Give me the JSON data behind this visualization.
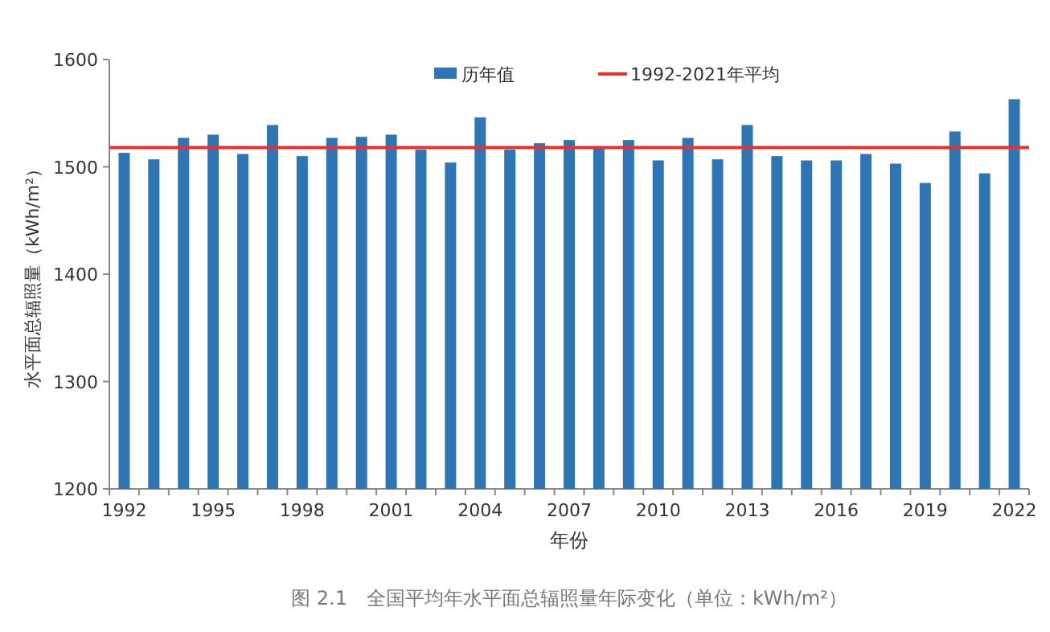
{
  "chart_data": {
    "type": "bar",
    "categories": [
      "1992",
      null,
      null,
      "1995",
      null,
      null,
      "1998",
      null,
      null,
      "2001",
      null,
      null,
      "2004",
      null,
      null,
      "2007",
      null,
      null,
      "2010",
      null,
      null,
      "2013",
      null,
      null,
      "2016",
      null,
      null,
      "2019",
      null,
      null,
      "2022"
    ],
    "series": [
      {
        "name": "历年值",
        "color": "#2e75b6",
        "values": [
          1513,
          1507,
          1527,
          1530,
          1512,
          1539,
          1510,
          1527,
          1528,
          1530,
          1516,
          1504,
          1546,
          1516,
          1522,
          1525,
          1518,
          1525,
          1506,
          1527,
          1507,
          1539,
          1510,
          1506,
          1506,
          1512,
          1503,
          1485,
          1533,
          1494,
          1563
        ]
      }
    ],
    "ylim": [
      1200,
      1600
    ],
    "yticks": [
      1200,
      1300,
      1400,
      1500,
      1600
    ],
    "xlabel": "年份",
    "ylabel": "水平面总辐照量（kWh/m²）",
    "ref_lines": [
      {
        "axis": "y",
        "value": 1518,
        "label": "1992-2021年平均",
        "color": "#e8312f"
      }
    ],
    "legend": "top right",
    "grid": false,
    "annotations": [
      "图 2.1　全国平均年水平面总辐照量年际变化（单位：kWh/m²）"
    ]
  }
}
